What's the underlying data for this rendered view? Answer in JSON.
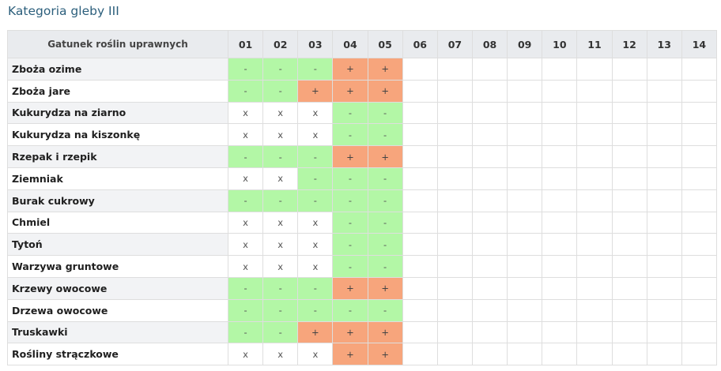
{
  "title": "Kategoria gleby III",
  "table": {
    "name_header": "Gatunek roślin uprawnych",
    "columns": [
      "01",
      "02",
      "03",
      "04",
      "05",
      "06",
      "07",
      "08",
      "09",
      "10",
      "11",
      "12",
      "13",
      "14"
    ],
    "colors": {
      "minus": "#b3f7a6",
      "plus": "#f7a57c",
      "x": "#ffffff"
    },
    "rows": [
      {
        "name": "Zboża ozime",
        "cells": [
          "-",
          "-",
          "-",
          "+",
          "+",
          "",
          "",
          "",
          "",
          "",
          "",
          "",
          "",
          ""
        ]
      },
      {
        "name": "Zboża jare",
        "cells": [
          "-",
          "-",
          "+",
          "+",
          "+",
          "",
          "",
          "",
          "",
          "",
          "",
          "",
          "",
          ""
        ]
      },
      {
        "name": "Kukurydza na ziarno",
        "cells": [
          "x",
          "x",
          "x",
          "-",
          "-",
          "",
          "",
          "",
          "",
          "",
          "",
          "",
          "",
          ""
        ]
      },
      {
        "name": "Kukurydza na kiszonkę",
        "cells": [
          "x",
          "x",
          "x",
          "-",
          "-",
          "",
          "",
          "",
          "",
          "",
          "",
          "",
          "",
          ""
        ]
      },
      {
        "name": "Rzepak i rzepik",
        "cells": [
          "-",
          "-",
          "-",
          "+",
          "+",
          "",
          "",
          "",
          "",
          "",
          "",
          "",
          "",
          ""
        ]
      },
      {
        "name": "Ziemniak",
        "cells": [
          "x",
          "x",
          "-",
          "-",
          "-",
          "",
          "",
          "",
          "",
          "",
          "",
          "",
          "",
          ""
        ]
      },
      {
        "name": "Burak cukrowy",
        "cells": [
          "-",
          "-",
          "-",
          "-",
          "-",
          "",
          "",
          "",
          "",
          "",
          "",
          "",
          "",
          ""
        ]
      },
      {
        "name": "Chmiel",
        "cells": [
          "x",
          "x",
          "x",
          "-",
          "-",
          "",
          "",
          "",
          "",
          "",
          "",
          "",
          "",
          ""
        ]
      },
      {
        "name": "Tytoń",
        "cells": [
          "x",
          "x",
          "x",
          "-",
          "-",
          "",
          "",
          "",
          "",
          "",
          "",
          "",
          "",
          ""
        ]
      },
      {
        "name": "Warzywa gruntowe",
        "cells": [
          "x",
          "x",
          "x",
          "-",
          "-",
          "",
          "",
          "",
          "",
          "",
          "",
          "",
          "",
          ""
        ]
      },
      {
        "name": "Krzewy owocowe",
        "cells": [
          "-",
          "-",
          "-",
          "+",
          "+",
          "",
          "",
          "",
          "",
          "",
          "",
          "",
          "",
          ""
        ]
      },
      {
        "name": "Drzewa owocowe",
        "cells": [
          "-",
          "-",
          "-",
          "-",
          "-",
          "",
          "",
          "",
          "",
          "",
          "",
          "",
          "",
          ""
        ]
      },
      {
        "name": "Truskawki",
        "cells": [
          "-",
          "-",
          "+",
          "+",
          "+",
          "",
          "",
          "",
          "",
          "",
          "",
          "",
          "",
          ""
        ]
      },
      {
        "name": "Rośliny strączkowe",
        "cells": [
          "x",
          "x",
          "x",
          "+",
          "+",
          "",
          "",
          "",
          "",
          "",
          "",
          "",
          "",
          ""
        ]
      }
    ]
  }
}
